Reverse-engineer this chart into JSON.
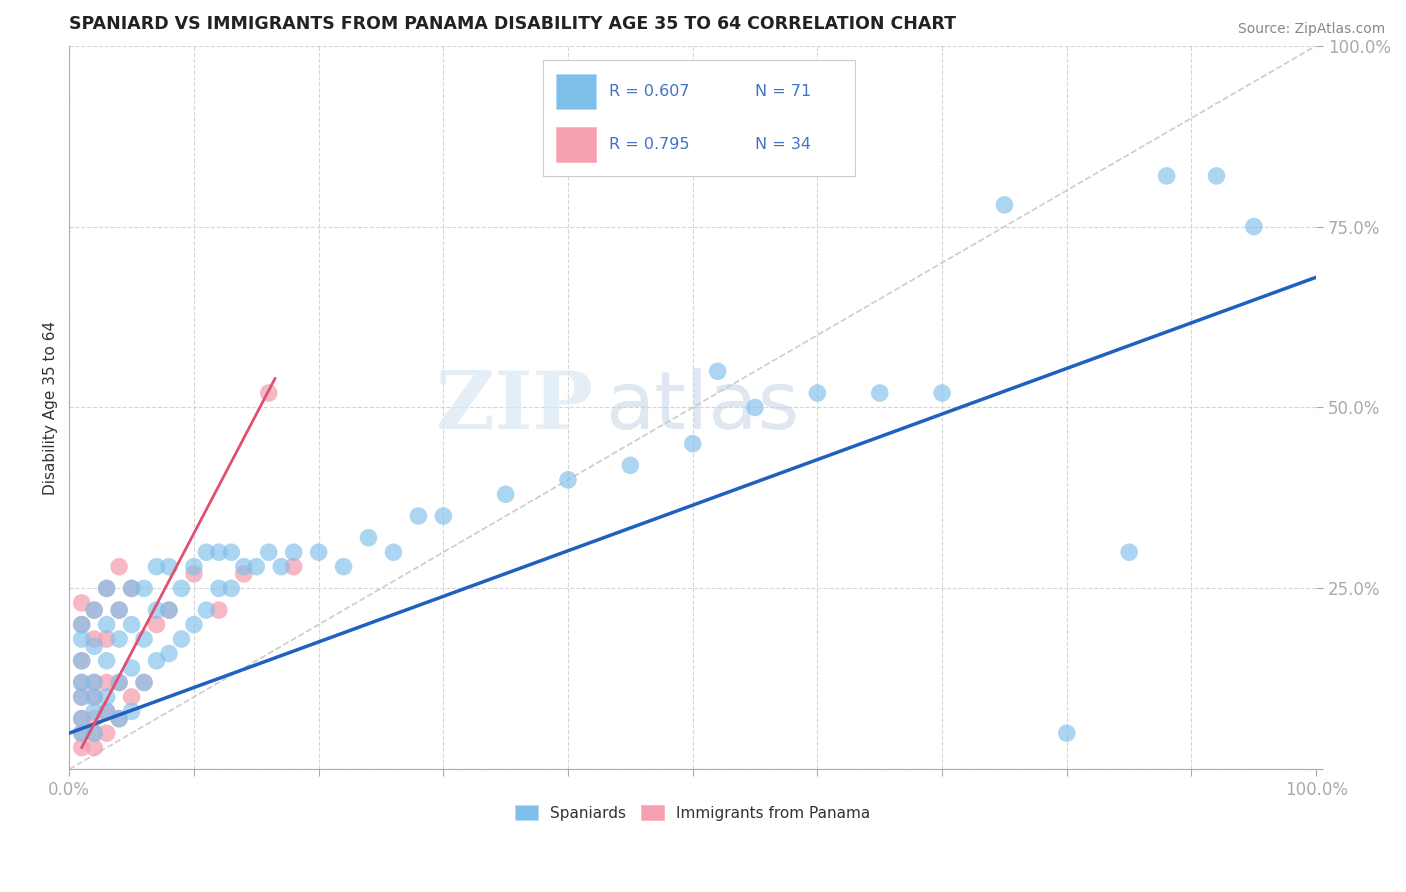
{
  "title": "SPANIARD VS IMMIGRANTS FROM PANAMA DISABILITY AGE 35 TO 64 CORRELATION CHART",
  "source": "Source: ZipAtlas.com",
  "ylabel": "Disability Age 35 to 64",
  "xlim": [
    0,
    1
  ],
  "ylim": [
    0,
    1
  ],
  "color_blue": "#7fbfea",
  "color_pink": "#f4a0b0",
  "color_blue_line": "#2060c0",
  "color_pink_line": "#e05070",
  "watermark_zip": "ZIP",
  "watermark_atlas": "atlas",
  "legend_r1": "R = 0.607",
  "legend_n1": "N = 71",
  "legend_r2": "R = 0.795",
  "legend_n2": "N = 34",
  "blue_scatter_x": [
    0.01,
    0.01,
    0.01,
    0.01,
    0.01,
    0.01,
    0.01,
    0.02,
    0.02,
    0.02,
    0.02,
    0.02,
    0.02,
    0.03,
    0.03,
    0.03,
    0.03,
    0.03,
    0.04,
    0.04,
    0.04,
    0.04,
    0.05,
    0.05,
    0.05,
    0.05,
    0.06,
    0.06,
    0.06,
    0.07,
    0.07,
    0.07,
    0.08,
    0.08,
    0.08,
    0.09,
    0.09,
    0.1,
    0.1,
    0.11,
    0.11,
    0.12,
    0.12,
    0.13,
    0.13,
    0.14,
    0.15,
    0.16,
    0.17,
    0.18,
    0.2,
    0.22,
    0.24,
    0.26,
    0.28,
    0.3,
    0.35,
    0.4,
    0.45,
    0.5,
    0.52,
    0.55,
    0.6,
    0.65,
    0.7,
    0.75,
    0.8,
    0.85,
    0.88,
    0.92,
    0.95
  ],
  "blue_scatter_y": [
    0.05,
    0.07,
    0.1,
    0.12,
    0.15,
    0.18,
    0.2,
    0.05,
    0.08,
    0.1,
    0.12,
    0.17,
    0.22,
    0.08,
    0.1,
    0.15,
    0.2,
    0.25,
    0.07,
    0.12,
    0.18,
    0.22,
    0.08,
    0.14,
    0.2,
    0.25,
    0.12,
    0.18,
    0.25,
    0.15,
    0.22,
    0.28,
    0.16,
    0.22,
    0.28,
    0.18,
    0.25,
    0.2,
    0.28,
    0.22,
    0.3,
    0.25,
    0.3,
    0.25,
    0.3,
    0.28,
    0.28,
    0.3,
    0.28,
    0.3,
    0.3,
    0.28,
    0.32,
    0.3,
    0.35,
    0.35,
    0.38,
    0.4,
    0.42,
    0.45,
    0.55,
    0.5,
    0.52,
    0.52,
    0.52,
    0.78,
    0.05,
    0.3,
    0.82,
    0.82,
    0.75
  ],
  "pink_scatter_x": [
    0.01,
    0.01,
    0.01,
    0.01,
    0.01,
    0.01,
    0.01,
    0.01,
    0.02,
    0.02,
    0.02,
    0.02,
    0.02,
    0.02,
    0.02,
    0.03,
    0.03,
    0.03,
    0.03,
    0.03,
    0.04,
    0.04,
    0.04,
    0.04,
    0.05,
    0.05,
    0.06,
    0.07,
    0.08,
    0.1,
    0.12,
    0.14,
    0.16,
    0.18
  ],
  "pink_scatter_y": [
    0.03,
    0.05,
    0.07,
    0.1,
    0.12,
    0.15,
    0.2,
    0.23,
    0.03,
    0.05,
    0.07,
    0.1,
    0.12,
    0.18,
    0.22,
    0.05,
    0.08,
    0.12,
    0.18,
    0.25,
    0.07,
    0.12,
    0.22,
    0.28,
    0.1,
    0.25,
    0.12,
    0.2,
    0.22,
    0.27,
    0.22,
    0.27,
    0.52,
    0.28
  ],
  "blue_line_x": [
    0.0,
    1.0
  ],
  "blue_line_y": [
    0.05,
    0.68
  ],
  "pink_line_x": [
    0.01,
    0.165
  ],
  "pink_line_y": [
    0.03,
    0.54
  ]
}
